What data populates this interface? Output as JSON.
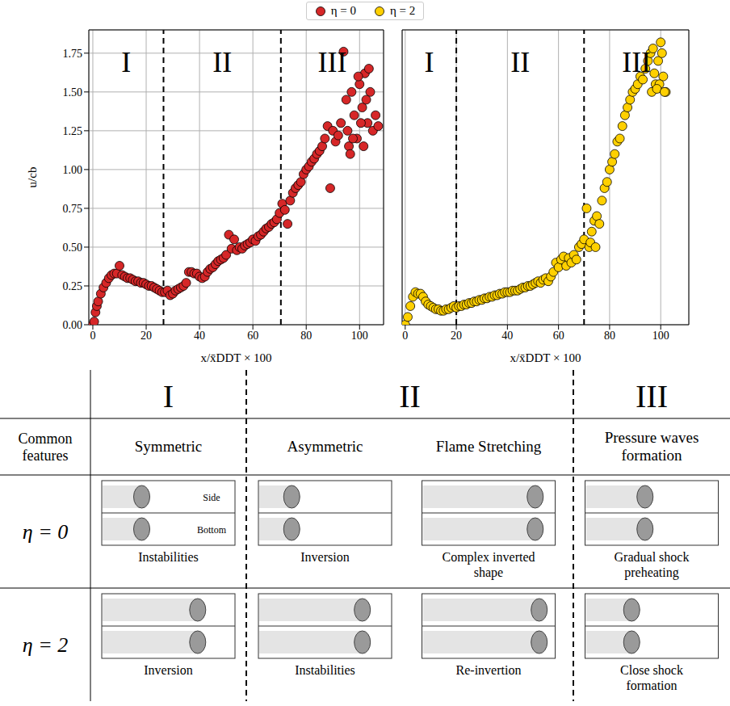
{
  "chart_data": [
    {
      "type": "scatter",
      "xlabel": "x/x̄DDT × 100",
      "ylabel": "u/cb",
      "xlim": [
        -1.5,
        109
      ],
      "xticks": [
        0,
        20,
        40,
        60,
        80,
        100
      ],
      "ylim": [
        0,
        1.9
      ],
      "yticks": [
        {
          "value": 0,
          "label": "0.00"
        },
        {
          "value": 0.25,
          "label": "0.25"
        },
        {
          "value": 0.5,
          "label": "0.50"
        },
        {
          "value": 0.75,
          "label": "0.75"
        },
        {
          "value": 1,
          "label": "1.00"
        },
        {
          "value": 1.25,
          "label": "1.25"
        },
        {
          "value": 1.5,
          "label": "1.50"
        },
        {
          "value": 1.75,
          "label": "1.75"
        }
      ],
      "grid": true,
      "regions": {
        "boundaries": [
          26.5,
          70.5
        ],
        "labels": [
          "I",
          "II",
          "III"
        ]
      },
      "series": [
        {
          "name": "η = 0",
          "color": "#d62728",
          "marker": "o",
          "x": [
            0,
            0.5,
            1,
            1.5,
            2,
            3,
            4,
            5,
            6,
            7,
            8,
            9,
            10,
            11,
            12,
            13,
            14,
            15,
            16,
            17,
            18,
            19,
            20,
            21,
            22,
            23,
            24,
            25,
            26,
            27,
            28,
            29,
            30,
            31,
            32,
            33,
            34,
            35,
            36,
            37,
            38,
            39,
            40,
            41,
            42,
            43,
            44,
            45,
            46,
            47,
            48,
            49,
            50,
            51,
            52,
            53,
            54,
            55,
            56,
            57,
            58,
            59,
            60,
            61,
            62,
            63,
            64,
            65,
            66,
            67,
            68,
            69,
            70,
            71,
            72,
            73,
            74,
            75,
            76,
            77,
            78,
            79,
            80,
            81,
            82,
            83,
            84,
            85,
            86,
            87,
            88,
            89,
            90,
            91,
            92,
            93,
            94,
            95,
            96,
            97,
            98,
            99,
            100,
            101,
            102,
            103,
            104,
            105,
            106,
            107,
            95.5,
            97.5,
            99.5,
            101.5,
            102.5,
            103.5,
            96.5,
            100.5
          ],
          "values": [
            0,
            0.02,
            0.08,
            0.12,
            0.15,
            0.2,
            0.24,
            0.27,
            0.3,
            0.32,
            0.33,
            0.33,
            0.38,
            0.32,
            0.31,
            0.3,
            0.3,
            0.29,
            0.28,
            0.28,
            0.27,
            0.27,
            0.26,
            0.25,
            0.25,
            0.24,
            0.23,
            0.22,
            0.21,
            0.21,
            0.22,
            0.19,
            0.2,
            0.22,
            0.23,
            0.24,
            0.25,
            0.27,
            0.34,
            0.34,
            0.33,
            0.33,
            0.31,
            0.3,
            0.31,
            0.34,
            0.36,
            0.37,
            0.39,
            0.41,
            0.42,
            0.43,
            0.45,
            0.58,
            0.49,
            0.55,
            0.48,
            0.5,
            0.49,
            0.51,
            0.52,
            0.53,
            0.55,
            0.54,
            0.57,
            0.58,
            0.6,
            0.62,
            0.63,
            0.65,
            0.66,
            0.68,
            0.72,
            0.78,
            0.74,
            0.65,
            0.8,
            0.85,
            0.88,
            0.9,
            0.92,
            0.97,
            1.0,
            1.02,
            1.05,
            1.07,
            1.1,
            1.12,
            1.15,
            1.2,
            1.28,
            0.88,
            1.25,
            1.18,
            1.22,
            1.3,
            1.76,
            1.45,
            1.15,
            1.5,
            1.35,
            1.2,
            1.55,
            1.4,
            1.62,
            1.3,
            1.5,
            1.25,
            1.35,
            1.28,
            1.25,
            1.2,
            1.6,
            1.15,
            1.45,
            1.65,
            1.1,
            1.3
          ]
        }
      ]
    },
    {
      "type": "scatter",
      "xlabel": "x/x̄DDT × 100",
      "xlim": [
        -1.2,
        111
      ],
      "xticks": [
        0,
        20,
        40,
        60,
        80,
        100
      ],
      "ylim": [
        0,
        1.9
      ],
      "yticks": [
        0,
        0.25,
        0.5,
        0.75,
        1,
        1.25,
        1.5,
        1.75
      ],
      "tick_labels": "x",
      "grid": true,
      "regions": {
        "boundaries": [
          20,
          70
        ],
        "labels": [
          "I",
          "II",
          "III"
        ]
      },
      "series": [
        {
          "name": "η = 2",
          "color": "#ffd000",
          "marker": "o",
          "x": [
            0,
            1,
            2,
            3,
            4,
            5,
            6,
            7,
            8,
            9,
            10,
            11,
            12,
            13,
            14,
            15,
            16,
            17,
            18,
            19,
            20,
            21,
            22,
            23,
            24,
            25,
            26,
            27,
            28,
            29,
            30,
            31,
            32,
            33,
            34,
            35,
            36,
            37,
            38,
            39,
            40,
            41,
            42,
            43,
            44,
            45,
            46,
            47,
            48,
            49,
            50,
            51,
            52,
            53,
            54,
            55,
            56,
            57,
            58,
            59,
            60,
            61,
            62,
            63,
            64,
            65,
            66,
            67,
            68,
            69,
            70,
            71,
            72,
            73,
            74,
            75,
            76,
            77,
            78,
            79,
            80,
            81,
            82,
            83,
            84,
            85,
            86,
            87,
            88,
            89,
            90,
            91,
            92,
            93,
            94,
            95,
            96,
            97,
            98,
            99,
            100,
            101,
            102,
            96.5,
            97.5,
            99.5,
            100.5,
            98.5,
            101.5,
            72.5,
            74.5
          ],
          "values": [
            0,
            0.05,
            0.12,
            0.18,
            0.21,
            0.2,
            0.2,
            0.18,
            0.15,
            0.13,
            0.12,
            0.11,
            0.1,
            0.1,
            0.09,
            0.09,
            0.1,
            0.1,
            0.11,
            0.12,
            0.11,
            0.12,
            0.12,
            0.13,
            0.13,
            0.14,
            0.14,
            0.15,
            0.15,
            0.16,
            0.16,
            0.17,
            0.17,
            0.18,
            0.18,
            0.19,
            0.19,
            0.2,
            0.2,
            0.21,
            0.21,
            0.21,
            0.22,
            0.22,
            0.22,
            0.23,
            0.24,
            0.24,
            0.25,
            0.25,
            0.26,
            0.27,
            0.28,
            0.27,
            0.29,
            0.3,
            0.28,
            0.31,
            0.34,
            0.4,
            0.37,
            0.42,
            0.44,
            0.38,
            0.43,
            0.4,
            0.45,
            0.42,
            0.5,
            0.52,
            0.55,
            0.75,
            0.5,
            0.6,
            0.67,
            0.7,
            0.65,
            0.8,
            0.88,
            0.92,
            1.0,
            1.05,
            1.1,
            1.18,
            1.2,
            1.28,
            1.35,
            1.4,
            1.45,
            1.5,
            1.52,
            1.55,
            1.6,
            1.58,
            1.65,
            1.7,
            1.75,
            1.78,
            1.55,
            1.7,
            1.82,
            1.6,
            1.5,
            1.5,
            1.62,
            1.55,
            1.75,
            1.52,
            1.5,
            0.53,
            0.5
          ]
        }
      ]
    }
  ],
  "legend": "top",
  "table": {
    "phases": [
      "I",
      "II",
      "III"
    ],
    "row_header": "Common features",
    "features": [
      "Symmetric",
      "Asymmetric",
      "Flame Stretching",
      "Pressure waves formation"
    ],
    "image_labels": [
      "Side",
      "Bottom"
    ],
    "rows": [
      {
        "label": "η = 0",
        "captions": [
          "Instabilities",
          "Inversion",
          "Complex inverted shape",
          "Gradual shock preheating"
        ]
      },
      {
        "label": "η = 2",
        "captions": [
          "Inversion",
          "Instabilities",
          "Re-invertion",
          "Close shock formation"
        ]
      }
    ]
  }
}
